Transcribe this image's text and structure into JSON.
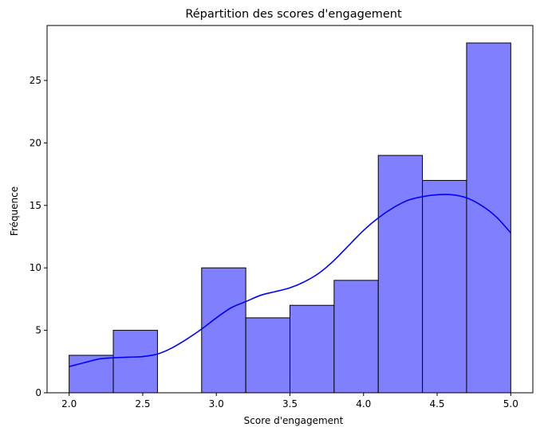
{
  "chart_data": {
    "type": "bar",
    "title": "Répartition des scores d'engagement",
    "xlabel": "Score d'engagement",
    "ylabel": "Fréquence",
    "xlim": [
      1.85,
      5.15
    ],
    "ylim": [
      0,
      29.4
    ],
    "x_ticks": [
      {
        "value": 2.0,
        "label": "2.0"
      },
      {
        "value": 2.5,
        "label": "2.5"
      },
      {
        "value": 3.0,
        "label": "3.0"
      },
      {
        "value": 3.5,
        "label": "3.5"
      },
      {
        "value": 4.0,
        "label": "4.0"
      },
      {
        "value": 4.5,
        "label": "4.5"
      },
      {
        "value": 5.0,
        "label": "5.0"
      }
    ],
    "y_ticks": [
      {
        "value": 0,
        "label": "0"
      },
      {
        "value": 5,
        "label": "5"
      },
      {
        "value": 10,
        "label": "10"
      },
      {
        "value": 15,
        "label": "15"
      },
      {
        "value": 20,
        "label": "20"
      },
      {
        "value": 25,
        "label": "25"
      }
    ],
    "bins": [
      {
        "start": 2.0,
        "end": 2.3,
        "count": 3
      },
      {
        "start": 2.3,
        "end": 2.6,
        "count": 5
      },
      {
        "start": 2.6,
        "end": 2.9,
        "count": 0
      },
      {
        "start": 2.9,
        "end": 3.2,
        "count": 10
      },
      {
        "start": 3.2,
        "end": 3.5,
        "count": 6
      },
      {
        "start": 3.5,
        "end": 3.8,
        "count": 7
      },
      {
        "start": 3.8,
        "end": 4.1,
        "count": 9
      },
      {
        "start": 4.1,
        "end": 4.4,
        "count": 19
      },
      {
        "start": 4.4,
        "end": 4.7,
        "count": 17
      },
      {
        "start": 4.7,
        "end": 5.0,
        "count": 28
      }
    ],
    "kde": {
      "x": [
        2.0,
        2.1,
        2.2,
        2.3,
        2.4,
        2.5,
        2.6,
        2.7,
        2.8,
        2.9,
        3.0,
        3.1,
        3.2,
        3.3,
        3.4,
        3.5,
        3.6,
        3.7,
        3.8,
        3.9,
        4.0,
        4.1,
        4.2,
        4.3,
        4.4,
        4.5,
        4.6,
        4.7,
        4.8,
        4.9,
        5.0
      ],
      "y": [
        2.1,
        2.4,
        2.7,
        2.8,
        2.85,
        2.9,
        3.1,
        3.6,
        4.3,
        5.1,
        6.0,
        6.8,
        7.3,
        7.8,
        8.1,
        8.4,
        8.9,
        9.6,
        10.6,
        11.8,
        13.0,
        14.0,
        14.8,
        15.4,
        15.7,
        15.85,
        15.85,
        15.6,
        15.0,
        14.1,
        12.8
      ]
    },
    "bar_color": "#8080ff",
    "bar_edge_color": "#000000",
    "kde_color": "#0000ff",
    "grid": false,
    "legend": "none"
  }
}
